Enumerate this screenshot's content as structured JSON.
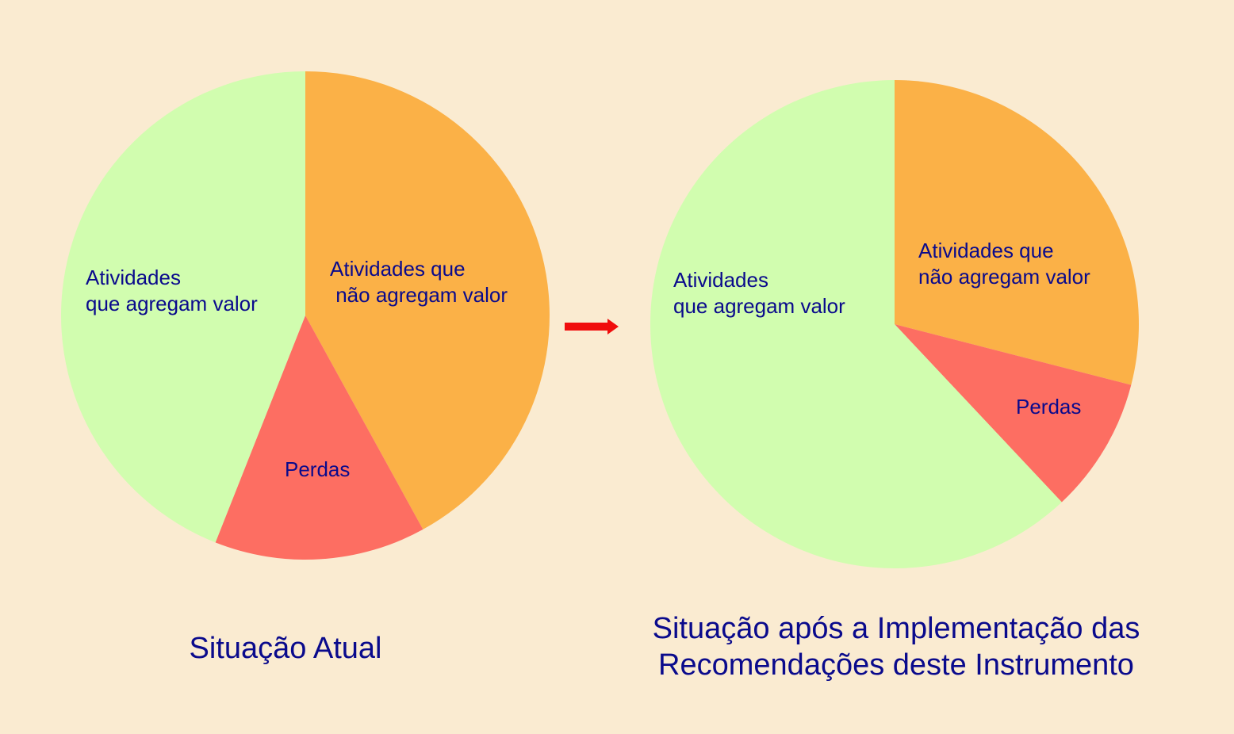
{
  "colors": {
    "background": "#FAEBD1",
    "label_text": "#0A0A8C",
    "arrow": "#F00D0D"
  },
  "arrow_icon": "right-arrow-icon",
  "chart_data": [
    {
      "type": "pie",
      "title": "Situação Atual",
      "slices": [
        {
          "label": "Atividades que\n não agregam valor",
          "value": 42,
          "color": "#FBB147"
        },
        {
          "label": "Perdas",
          "value": 14,
          "color": "#FD6E62"
        },
        {
          "label": "Atividades\nque agregam valor",
          "value": 44,
          "color": "#D1FDAF"
        }
      ]
    },
    {
      "type": "pie",
      "title": "Situação após a Implementação das\n Recomendações deste Instrumento",
      "slices": [
        {
          "label": "Atividades que\nnão agregam valor",
          "value": 29,
          "color": "#FBB147"
        },
        {
          "label": "Perdas",
          "value": 9,
          "color": "#FD6E62"
        },
        {
          "label": "Atividades\nque agregam valor",
          "value": 62,
          "color": "#D1FDAF"
        }
      ]
    }
  ]
}
